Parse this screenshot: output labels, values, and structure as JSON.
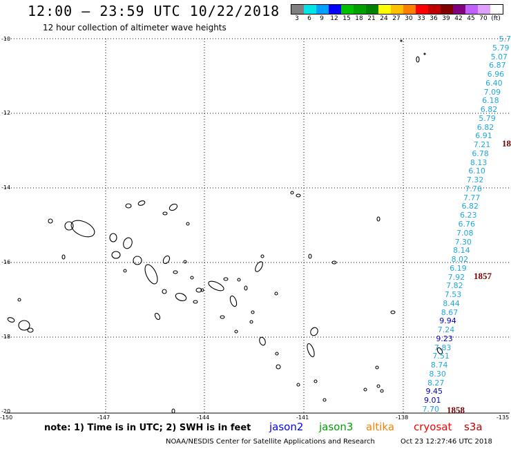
{
  "header": {
    "title": "12:00 – 23:59 UTC 10/22/2018",
    "subtitle": "12 hour collection of altimeter wave heights"
  },
  "legend": {
    "colors": [
      "#808080",
      "#00e5e5",
      "#00a0ff",
      "#0000ff",
      "#00c000",
      "#00a000",
      "#008000",
      "#ffff00",
      "#ffc000",
      "#ff8000",
      "#ff0000",
      "#c00000",
      "#800000",
      "#800080",
      "#c060ff",
      "#e0a0ff",
      "#ffffff"
    ],
    "ticks": [
      "3",
      "6",
      "9",
      "12",
      "15",
      "18",
      "21",
      "24",
      "27",
      "30",
      "33",
      "36",
      "39",
      "42",
      "45",
      "70",
      "(ft)"
    ]
  },
  "axes": {
    "lat_labels": [
      "-10",
      "-12",
      "-14",
      "-16",
      "-18",
      "-20"
    ],
    "lon_labels": [
      "-150",
      "-147",
      "-144",
      "-141",
      "-138",
      "-135"
    ]
  },
  "chart_data": {
    "type": "scatter",
    "xlim": [
      -150,
      -135
    ],
    "ylim": [
      -20,
      -10
    ],
    "grid": true,
    "track_times": [
      "1857",
      "1858",
      "18"
    ],
    "swh_track": [
      {
        "v": "5.7",
        "c": "#20a8e0"
      },
      {
        "v": "5.79",
        "c": "#20a8e0"
      },
      {
        "v": "5.07",
        "c": "#20a8e0"
      },
      {
        "v": "6.87",
        "c": "#20a8e0"
      },
      {
        "v": "6.96",
        "c": "#20a8e0"
      },
      {
        "v": "6.40",
        "c": "#20a8e0"
      },
      {
        "v": "7.09",
        "c": "#20a8e0"
      },
      {
        "v": "6.18",
        "c": "#20a8e0"
      },
      {
        "v": "6.82",
        "c": "#20a8e0"
      },
      {
        "v": "5.79",
        "c": "#20a8e0"
      },
      {
        "v": "6.82",
        "c": "#20a8e0"
      },
      {
        "v": "6.91",
        "c": "#20a8e0"
      },
      {
        "v": "7.21",
        "c": "#20a8e0"
      },
      {
        "v": "6.78",
        "c": "#20a8e0"
      },
      {
        "v": "8.13",
        "c": "#20a8e0"
      },
      {
        "v": "6.10",
        "c": "#20a8e0"
      },
      {
        "v": "7.32",
        "c": "#20a8e0"
      },
      {
        "v": "7.76",
        "c": "#20a8e0"
      },
      {
        "v": "7.77",
        "c": "#20a8e0"
      },
      {
        "v": "6.82",
        "c": "#20a8e0"
      },
      {
        "v": "6.23",
        "c": "#20a8e0"
      },
      {
        "v": "6.76",
        "c": "#20a8e0"
      },
      {
        "v": "7.08",
        "c": "#20a8e0"
      },
      {
        "v": "7.30",
        "c": "#20a8e0"
      },
      {
        "v": "8.14",
        "c": "#20a8e0"
      },
      {
        "v": "8.02",
        "c": "#20a8e0"
      },
      {
        "v": "6.19",
        "c": "#20a8e0"
      },
      {
        "v": "7.92",
        "c": "#20a8e0"
      },
      {
        "v": "7.82",
        "c": "#20a8e0"
      },
      {
        "v": "7.53",
        "c": "#20a8e0"
      },
      {
        "v": "8.44",
        "c": "#20a8e0"
      },
      {
        "v": "8.67",
        "c": "#20a8e0"
      },
      {
        "v": "9.94",
        "c": "#0000c0"
      },
      {
        "v": "7.24",
        "c": "#20a8e0"
      },
      {
        "v": "9.23",
        "c": "#0000c0"
      },
      {
        "v": "7.83",
        "c": "#20a8e0"
      },
      {
        "v": "7.51",
        "c": "#20a8e0"
      },
      {
        "v": "8.74",
        "c": "#20a8e0"
      },
      {
        "v": "8.30",
        "c": "#20a8e0"
      },
      {
        "v": "8.27",
        "c": "#20a8e0"
      },
      {
        "v": "9.45",
        "c": "#0000c0"
      },
      {
        "v": "9.01",
        "c": "#0000c0"
      },
      {
        "v": "7.70",
        "c": "#20a8e0"
      }
    ]
  },
  "footer": {
    "note": "note: 1) Time is in UTC; 2) SWH is in feet",
    "satellites": [
      {
        "name": "jason2",
        "color": "#0000ff"
      },
      {
        "name": "jason3",
        "color": "#00a000"
      },
      {
        "name": "altika",
        "color": "#ff8000"
      },
      {
        "name": "cryosat",
        "color": "#ff0000"
      },
      {
        "name": "s3a",
        "color": "#c00000"
      }
    ],
    "credit": "NOAA/NESDIS Center for Satellite Applications and Research",
    "timestamp": "Oct 23 12:27:46 UTC 2018"
  }
}
